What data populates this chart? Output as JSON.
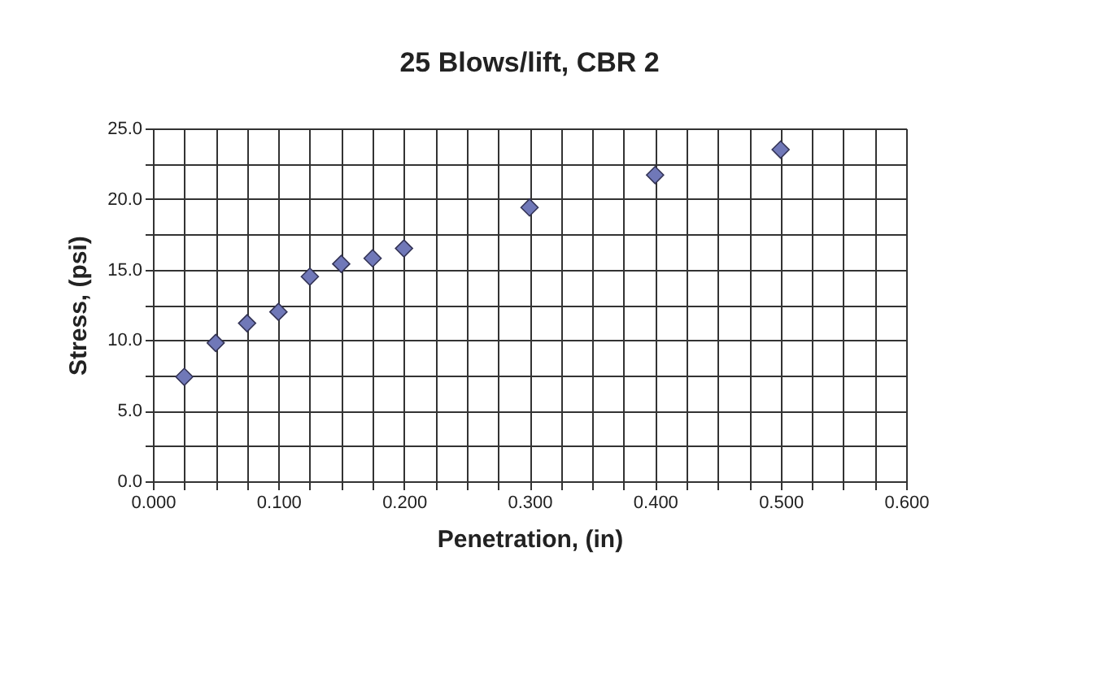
{
  "chart_data": {
    "type": "scatter",
    "title": "25 Blows/lift, CBR 2",
    "xlabel": "Penetration, (in)",
    "ylabel": "Stress, (psi)",
    "x": [
      0.025,
      0.05,
      0.075,
      0.1,
      0.125,
      0.15,
      0.175,
      0.2,
      0.3,
      0.4,
      0.5
    ],
    "series": [
      {
        "color": "#7078b8",
        "values": [
          7.4,
          9.8,
          11.2,
          12.0,
          14.5,
          15.4,
          15.8,
          16.5,
          19.4,
          21.7,
          23.5
        ]
      }
    ],
    "marker": "diamond",
    "grid": true,
    "xlim": [
      0,
      0.6
    ],
    "ylim": [
      0,
      25
    ],
    "xticks": [
      {
        "value": 0,
        "label": "0.000"
      },
      {
        "value": 0.025,
        "label": null
      },
      {
        "value": 0.05,
        "label": null
      },
      {
        "value": 0.075,
        "label": null
      },
      {
        "value": 0.1,
        "label": "0.100"
      },
      {
        "value": 0.125,
        "label": null
      },
      {
        "value": 0.15,
        "label": null
      },
      {
        "value": 0.175,
        "label": null
      },
      {
        "value": 0.2,
        "label": "0.200"
      },
      {
        "value": 0.225,
        "label": null
      },
      {
        "value": 0.25,
        "label": null
      },
      {
        "value": 0.275,
        "label": null
      },
      {
        "value": 0.3,
        "label": "0.300"
      },
      {
        "value": 0.325,
        "label": null
      },
      {
        "value": 0.35,
        "label": null
      },
      {
        "value": 0.375,
        "label": null
      },
      {
        "value": 0.4,
        "label": "0.400"
      },
      {
        "value": 0.425,
        "label": null
      },
      {
        "value": 0.45,
        "label": null
      },
      {
        "value": 0.475,
        "label": null
      },
      {
        "value": 0.5,
        "label": "0.500"
      },
      {
        "value": 0.525,
        "label": null
      },
      {
        "value": 0.55,
        "label": null
      },
      {
        "value": 0.575,
        "label": null
      },
      {
        "value": 0.6,
        "label": "0.600"
      }
    ],
    "yticks": [
      {
        "value": 0,
        "label": "0.0"
      },
      {
        "value": 2.5,
        "label": null
      },
      {
        "value": 5,
        "label": "5.0"
      },
      {
        "value": 7.5,
        "label": null
      },
      {
        "value": 10,
        "label": "10.0"
      },
      {
        "value": 12.5,
        "label": null
      },
      {
        "value": 15,
        "label": "15.0"
      },
      {
        "value": 17.5,
        "label": null
      },
      {
        "value": 20,
        "label": "20.0"
      },
      {
        "value": 22.5,
        "label": null
      },
      {
        "value": 25,
        "label": "25.0"
      }
    ]
  }
}
